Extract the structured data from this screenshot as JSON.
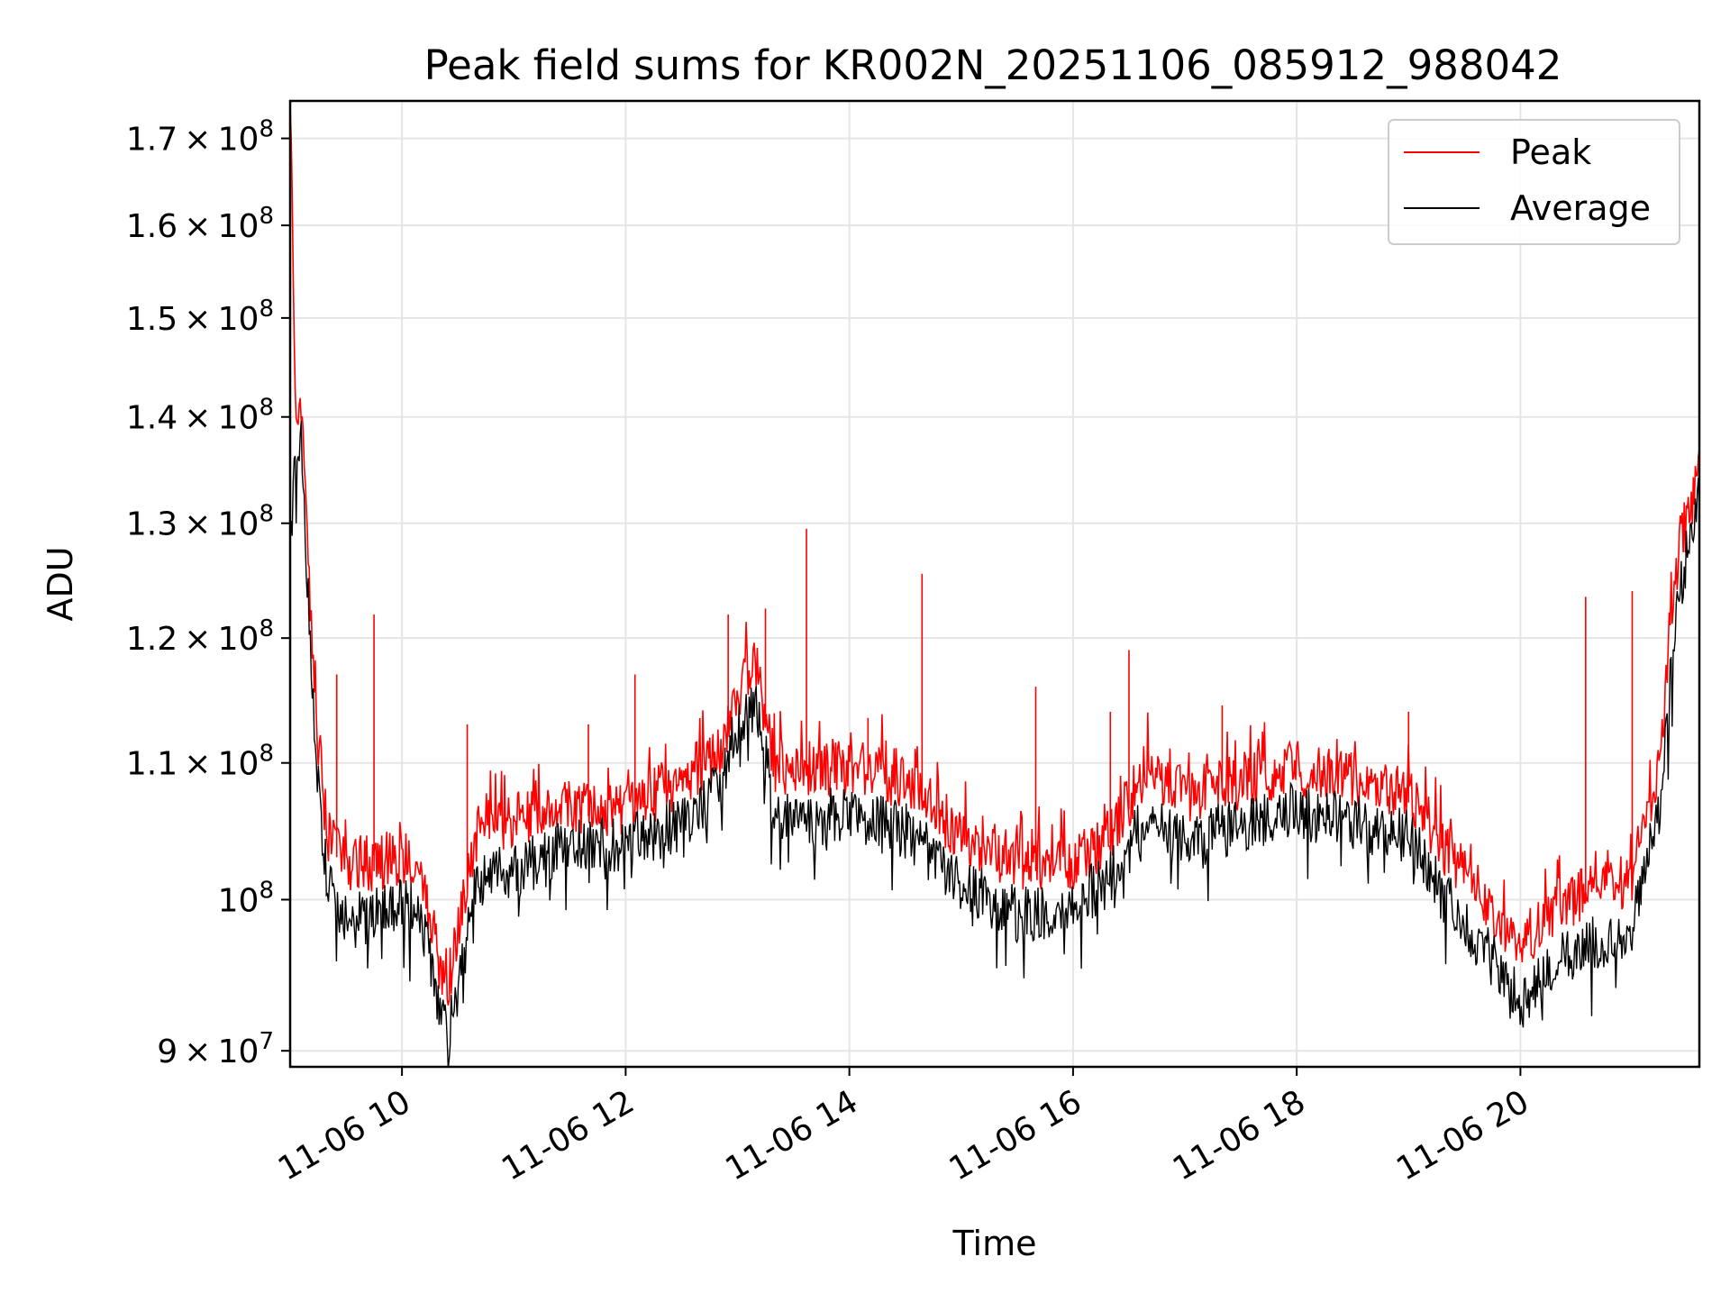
{
  "chart_data": {
    "type": "line",
    "title": "Peak field sums for KR002N_20251106_085912_988042",
    "xlabel": "Time",
    "ylabel": "ADU",
    "yscale": "log",
    "ylim": [
      89000000,
      174500000
    ],
    "xlim": [
      "2025-11-06 09:00",
      "2025-11-06 21:36"
    ],
    "grid": true,
    "legend_position": "upper right",
    "x_tick_labels": [
      "11-06 10",
      "11-06 12",
      "11-06 14",
      "11-06 16",
      "11-06 18",
      "11-06 20"
    ],
    "x_ticks": [
      "2025-11-06 10:00",
      "2025-11-06 12:00",
      "2025-11-06 14:00",
      "2025-11-06 16:00",
      "2025-11-06 18:00",
      "2025-11-06 20:00"
    ],
    "y_ticks": [
      {
        "value": 90000000,
        "mantissa": "9",
        "exp": "7"
      },
      {
        "value": 100000000,
        "mantissa": "",
        "exp": "8"
      },
      {
        "value": 110000000,
        "mantissa": "1.1",
        "exp": "8"
      },
      {
        "value": 120000000,
        "mantissa": "1.2",
        "exp": "8"
      },
      {
        "value": 130000000,
        "mantissa": "1.3",
        "exp": "8"
      },
      {
        "value": 140000000,
        "mantissa": "1.4",
        "exp": "8"
      },
      {
        "value": 150000000,
        "mantissa": "1.5",
        "exp": "8"
      },
      {
        "value": 160000000,
        "mantissa": "1.6",
        "exp": "8"
      },
      {
        "value": 170000000,
        "mantissa": "1.7",
        "exp": "8"
      }
    ],
    "x": [
      "2025-11-06 09:00",
      "2025-11-06 09:03",
      "2025-11-06 09:06",
      "2025-11-06 09:10",
      "2025-11-06 09:15",
      "2025-11-06 09:20",
      "2025-11-06 09:30",
      "2025-11-06 09:45",
      "2025-11-06 10:00",
      "2025-11-06 10:10",
      "2025-11-06 10:20",
      "2025-11-06 10:25",
      "2025-11-06 10:30",
      "2025-11-06 10:40",
      "2025-11-06 10:45",
      "2025-11-06 11:00",
      "2025-11-06 11:30",
      "2025-11-06 12:00",
      "2025-11-06 12:30",
      "2025-11-06 12:50",
      "2025-11-06 13:00",
      "2025-11-06 13:10",
      "2025-11-06 13:20",
      "2025-11-06 13:40",
      "2025-11-06 14:00",
      "2025-11-06 14:30",
      "2025-11-06 15:00",
      "2025-11-06 15:30",
      "2025-11-06 16:00",
      "2025-11-06 16:20",
      "2025-11-06 16:40",
      "2025-11-06 17:00",
      "2025-11-06 17:30",
      "2025-11-06 18:00",
      "2025-11-06 18:30",
      "2025-11-06 19:00",
      "2025-11-06 19:30",
      "2025-11-06 19:50",
      "2025-11-06 20:00",
      "2025-11-06 20:20",
      "2025-11-06 20:40",
      "2025-11-06 21:00",
      "2025-11-06 21:15",
      "2025-11-06 21:25",
      "2025-11-06 21:36"
    ],
    "series": [
      {
        "name": "Peak",
        "color": "#ff0000",
        "values": [
          172000000,
          140000000,
          139000000,
          125000000,
          111000000,
          104000000,
          102000000,
          102000000,
          102500000,
          102000000,
          95000000,
          94000000,
          97000000,
          104000000,
          105000000,
          105000000,
          106000000,
          106000000,
          108000000,
          110000000,
          115000000,
          117000000,
          109000000,
          109000000,
          109000000,
          108000000,
          104000000,
          102000000,
          102000000,
          104000000,
          109000000,
          107000000,
          108000000,
          109000000,
          108000000,
          107000000,
          101000000,
          98000000,
          96000000,
          99000000,
          100000000,
          101000000,
          110000000,
          127000000,
          134000000
        ]
      },
      {
        "name": "Average",
        "color": "#000000",
        "values": [
          128000000,
          136000000,
          138000000,
          122000000,
          108000000,
          101000000,
          99000000,
          99000000,
          99500000,
          99000000,
          92000000,
          91000000,
          94000000,
          101000000,
          102000000,
          102000000,
          104000000,
          104000000,
          105500000,
          108000000,
          113000000,
          115000000,
          106000000,
          106000000,
          106000000,
          105000000,
          101000000,
          99000000,
          99500000,
          101500000,
          106000000,
          104000000,
          105500000,
          106500000,
          105500000,
          104500000,
          98500000,
          95000000,
          93000000,
          96000000,
          97000000,
          98000000,
          107000000,
          124000000,
          132000000
        ]
      }
    ],
    "spikes": [
      {
        "x": "2025-11-06 09:10",
        "value": 122000000
      },
      {
        "x": "2025-11-06 09:25",
        "value": 117000000
      },
      {
        "x": "2025-11-06 09:45",
        "value": 122000000
      },
      {
        "x": "2025-11-06 10:35",
        "value": 113000000
      },
      {
        "x": "2025-11-06 11:40",
        "value": 113000000
      },
      {
        "x": "2025-11-06 12:05",
        "value": 117000000
      },
      {
        "x": "2025-11-06 12:55",
        "value": 122000000
      },
      {
        "x": "2025-11-06 13:15",
        "value": 122500000
      },
      {
        "x": "2025-11-06 13:37",
        "value": 129500000
      },
      {
        "x": "2025-11-06 14:10",
        "value": 113500000
      },
      {
        "x": "2025-11-06 14:39",
        "value": 125500000
      },
      {
        "x": "2025-11-06 15:40",
        "value": 116000000
      },
      {
        "x": "2025-11-06 16:30",
        "value": 119000000
      },
      {
        "x": "2025-11-06 16:20",
        "value": 114000000
      },
      {
        "x": "2025-11-06 17:20",
        "value": 114500000
      },
      {
        "x": "2025-11-06 19:00",
        "value": 114000000
      },
      {
        "x": "2025-11-06 20:35",
        "value": 123500000
      },
      {
        "x": "2025-11-06 21:00",
        "value": 124000000
      }
    ]
  }
}
